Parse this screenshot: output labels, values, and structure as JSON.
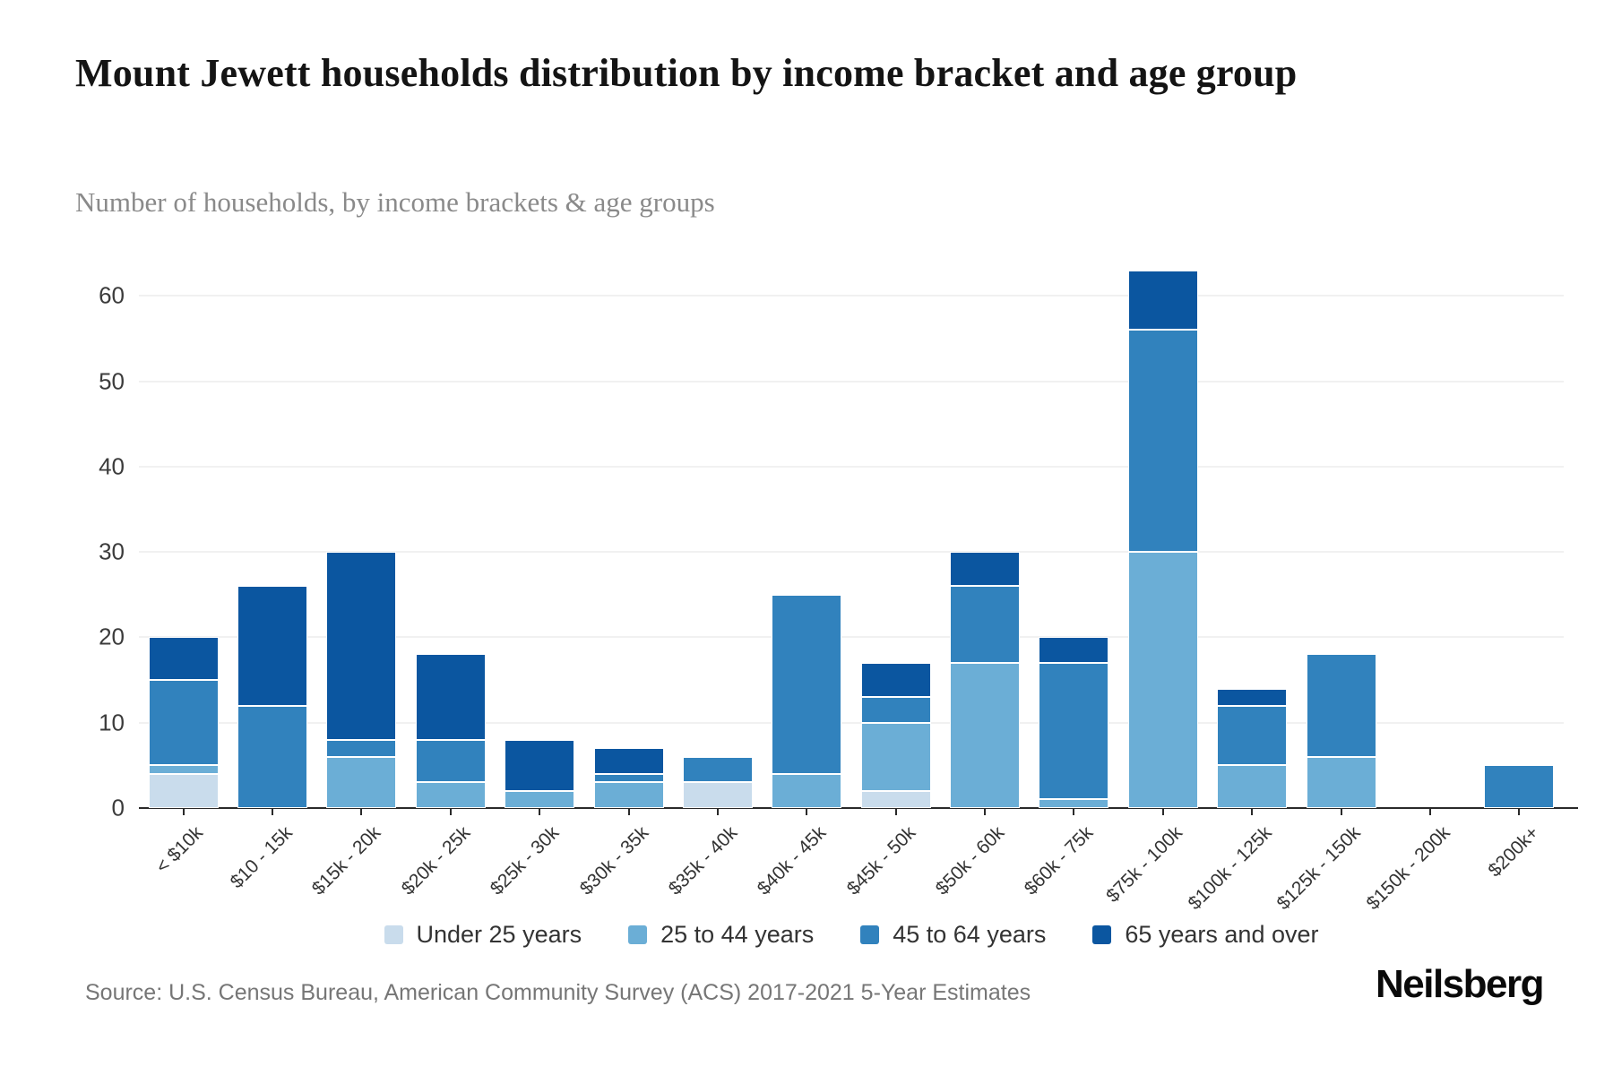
{
  "title": "Mount Jewett households distribution by income bracket and age group",
  "subtitle": "Number of households, by income brackets & age groups",
  "source": "Source: U.S. Census Bureau, American Community Survey (ACS) 2017-2021 5-Year Estimates",
  "brand": "Neilsberg",
  "chart_data": {
    "type": "bar",
    "stacked": true,
    "title": "Mount Jewett households distribution by income bracket and age group",
    "subtitle": "Number of households, by income brackets & age groups",
    "xlabel": "",
    "ylabel": "Number of households",
    "categories": [
      "< $10k",
      "$10 - 15k",
      "$15k - 20k",
      "$20k - 25k",
      "$25k - 30k",
      "$30k - 35k",
      "$35k - 40k",
      "$40k - 45k",
      "$45k - 50k",
      "$50k - 60k",
      "$60k - 75k",
      "$75k - 100k",
      "$100k - 125k",
      "$125k - 150k",
      "$150k - 200k",
      "$200k+"
    ],
    "series": [
      {
        "name": "Under 25 years",
        "color": "#c9dcec",
        "values": [
          4,
          0,
          0,
          0,
          0,
          0,
          3,
          0,
          2,
          0,
          0,
          0,
          0,
          0,
          0,
          0
        ]
      },
      {
        "name": "25 to 44 years",
        "color": "#6baed6",
        "values": [
          1,
          0,
          6,
          3,
          2,
          3,
          0,
          4,
          8,
          17,
          1,
          30,
          5,
          6,
          0,
          0
        ]
      },
      {
        "name": "45 to 64 years",
        "color": "#3182bd",
        "values": [
          10,
          12,
          2,
          5,
          0,
          1,
          3,
          21,
          3,
          9,
          16,
          26,
          7,
          12,
          0,
          5
        ]
      },
      {
        "name": "65 years and over",
        "color": "#0b56a0",
        "values": [
          5,
          14,
          22,
          10,
          6,
          3,
          0,
          0,
          4,
          4,
          3,
          7,
          2,
          0,
          0,
          0
        ]
      }
    ],
    "totals": [
      20,
      26,
      30,
      18,
      8,
      7,
      6,
      25,
      17,
      30,
      20,
      63,
      14,
      18,
      0,
      5
    ],
    "yticks": [
      0,
      10,
      20,
      30,
      40,
      50,
      60
    ],
    "ylim": [
      0,
      63
    ],
    "grid": true,
    "legend_position": "bottom"
  }
}
